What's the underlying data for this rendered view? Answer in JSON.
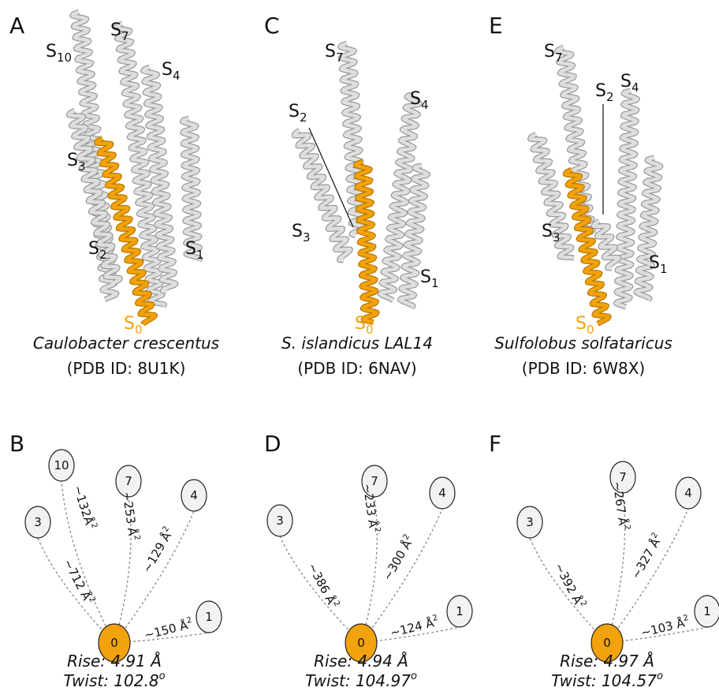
{
  "panels": [
    {
      "letter": "A",
      "helix_labels": [
        {
          "base": "S",
          "sub": "7"
        },
        {
          "base": "S",
          "sub": "10"
        },
        {
          "base": "S",
          "sub": "4"
        },
        {
          "base": "S",
          "sub": "3"
        },
        {
          "base": "S",
          "sub": "2"
        },
        {
          "base": "S",
          "sub": "1"
        },
        {
          "base": "S",
          "sub": "0"
        }
      ],
      "species": "Caulobacter crescentus",
      "pdb": "(PDB ID: 8U1K)"
    },
    {
      "letter": "C",
      "helix_labels": [
        {
          "base": "S",
          "sub": "7"
        },
        {
          "base": "S",
          "sub": "4"
        },
        {
          "base": "S",
          "sub": "2"
        },
        {
          "base": "S",
          "sub": "3"
        },
        {
          "base": "S",
          "sub": "1"
        },
        {
          "base": "S",
          "sub": "0"
        }
      ],
      "species": "S. islandicus LAL14",
      "pdb": "(PDB ID: 6NAV)"
    },
    {
      "letter": "E",
      "helix_labels": [
        {
          "base": "S",
          "sub": "7"
        },
        {
          "base": "S",
          "sub": "2"
        },
        {
          "base": "S",
          "sub": "4"
        },
        {
          "base": "S",
          "sub": "3"
        },
        {
          "base": "S",
          "sub": "1"
        },
        {
          "base": "S",
          "sub": "0"
        }
      ],
      "species": "Sulfolobus solfataricus",
      "pdb": "(PDB ID: 6W8X)"
    }
  ],
  "diagrams": [
    {
      "letter": "B",
      "center": "0",
      "nodes": [
        {
          "label": "3",
          "area": {
            "text": "~712 Å",
            "sup": "2"
          }
        },
        {
          "label": "10",
          "area": {
            "text": "~132Å",
            "sup": "2"
          }
        },
        {
          "label": "7",
          "area": {
            "text": "~253 Å",
            "sup": "2"
          }
        },
        {
          "label": "4",
          "area": {
            "text": "~129 Å",
            "sup": "2"
          }
        },
        {
          "label": "1",
          "area": {
            "text": "~150 Å",
            "sup": "2"
          }
        }
      ],
      "rise": "Rise: 4.91 Å",
      "twist": {
        "text": "Twist: 102.8",
        "sup": "o"
      }
    },
    {
      "letter": "D",
      "center": "0",
      "nodes": [
        {
          "label": "3",
          "area": {
            "text": "~386 Å",
            "sup": "2"
          }
        },
        {
          "label": "7",
          "area": {
            "text": "~233 Å",
            "sup": "2"
          }
        },
        {
          "label": "4",
          "area": {
            "text": "~300 Å",
            "sup": "2"
          }
        },
        {
          "label": "1",
          "area": {
            "text": "~124 Å",
            "sup": "2"
          }
        }
      ],
      "rise": "Rise: 4.94 Å",
      "twist": {
        "text": "Twist: 104.97",
        "sup": "o"
      }
    },
    {
      "letter": "F",
      "center": "0",
      "nodes": [
        {
          "label": "3",
          "area": {
            "text": "~392 Å",
            "sup": "2"
          }
        },
        {
          "label": "7",
          "area": {
            "text": "~267 Å",
            "sup": "2"
          }
        },
        {
          "label": "4",
          "area": {
            "text": "~327 Å",
            "sup": "2"
          }
        },
        {
          "label": "1",
          "area": {
            "text": "~103 Å",
            "sup": "2"
          }
        }
      ],
      "rise": "Rise: 4.97 Å",
      "twist": {
        "text": "Twist: 104.57",
        "sup": "o"
      }
    }
  ]
}
